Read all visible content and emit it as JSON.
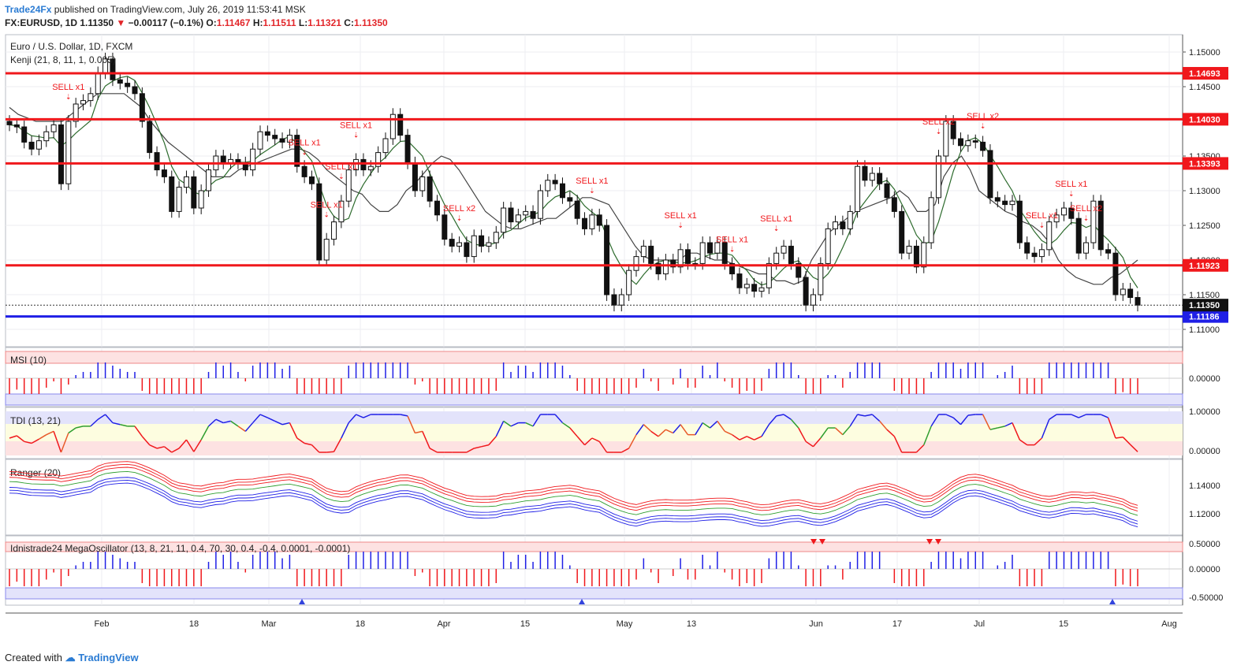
{
  "header": {
    "publisher": "Trade24Fx",
    "published_text": "published on TradingView.com, July 26, 2019 11:53:41 MSK",
    "symbol": "FX:EURUSD, 1D",
    "last": "1.11350",
    "change": "−0.00117 (−0.1%)",
    "o_label": "O:",
    "o_val": "1.11467",
    "h_label": "H:",
    "h_val": "1.11511",
    "l_label": "L:",
    "l_val": "1.11321",
    "c_label": "C:",
    "c_val": "1.11350"
  },
  "footer": {
    "created_with": "Created with",
    "brand": "TradingView"
  },
  "colors": {
    "red": "#f0181c",
    "blue": "#1f1fe6",
    "green": "#2ca02c",
    "bear": "#111111",
    "bull": "#ffffff",
    "grid": "#eceef2"
  },
  "chart_data": [
    {
      "type": "candlestick",
      "title": "Euro / U.S. Dollar, 1D, FXCM",
      "subtitle": "Kenji (21, 8, 11, 1, 0.005)",
      "x_ticks": [
        "Feb",
        "18",
        "Mar",
        "18",
        "Apr",
        "15",
        "May",
        "13",
        "Jun",
        "17",
        "Jul",
        "15",
        "Aug"
      ],
      "y_ticks": [
        "1.15000",
        "1.14500",
        "1.14000",
        "1.13500",
        "1.13000",
        "1.12500",
        "1.12000",
        "1.11500",
        "1.11000"
      ],
      "ylim": [
        1.1075,
        1.1525
      ],
      "horizontal_levels": [
        {
          "value": 1.14693,
          "label": "1.14693",
          "color": "#f0181c"
        },
        {
          "value": 1.1403,
          "label": "1.14030",
          "color": "#f0181c"
        },
        {
          "value": 1.13393,
          "label": "1.13393",
          "color": "#f0181c"
        },
        {
          "value": 1.11923,
          "label": "1.11923",
          "color": "#f0181c"
        },
        {
          "value": 1.11186,
          "label": "1.11186",
          "color": "#1f1fe6"
        }
      ],
      "last_price": {
        "value": 1.1135,
        "label": "1.11350"
      },
      "signals": [
        "SELL x1",
        "SELL x1",
        "SELL x1",
        "SELL x1",
        "SELL x1",
        "SELL x2",
        "SELL x1",
        "SELL x1",
        "SELL x1",
        "SELL x1",
        "SELL x2",
        "SELL x2",
        "SELL x1",
        "SELL x1",
        "SELL x2"
      ],
      "close": [
        1.1395,
        1.1392,
        1.137,
        1.136,
        1.1372,
        1.1385,
        1.1395,
        1.131,
        1.14,
        1.1425,
        1.143,
        1.144,
        1.147,
        1.149,
        1.146,
        1.1455,
        1.145,
        1.144,
        1.14,
        1.1355,
        1.133,
        1.132,
        1.127,
        1.1305,
        1.132,
        1.1275,
        1.13,
        1.133,
        1.135,
        1.134,
        1.1345,
        1.134,
        1.133,
        1.136,
        1.1385,
        1.138,
        1.1375,
        1.137,
        1.138,
        1.1335,
        1.132,
        1.131,
        1.12,
        1.123,
        1.1255,
        1.1285,
        1.133,
        1.1345,
        1.133,
        1.1335,
        1.1355,
        1.1375,
        1.141,
        1.138,
        1.134,
        1.13,
        1.132,
        1.1285,
        1.1265,
        1.123,
        1.122,
        1.1225,
        1.1205,
        1.1235,
        1.122,
        1.1225,
        1.124,
        1.1275,
        1.1255,
        1.1265,
        1.127,
        1.126,
        1.13,
        1.1315,
        1.131,
        1.129,
        1.1285,
        1.126,
        1.1245,
        1.1265,
        1.125,
        1.115,
        1.1135,
        1.115,
        1.1185,
        1.1205,
        1.122,
        1.1195,
        1.118,
        1.12,
        1.119,
        1.1215,
        1.1195,
        1.1195,
        1.1225,
        1.121,
        1.1225,
        1.1195,
        1.118,
        1.116,
        1.1165,
        1.1155,
        1.116,
        1.1195,
        1.121,
        1.122,
        1.1195,
        1.1175,
        1.1135,
        1.115,
        1.1195,
        1.1245,
        1.1255,
        1.1245,
        1.127,
        1.1335,
        1.1315,
        1.1325,
        1.131,
        1.129,
        1.127,
        1.121,
        1.122,
        1.119,
        1.1225,
        1.129,
        1.135,
        1.14,
        1.1375,
        1.1365,
        1.1372,
        1.137,
        1.1358,
        1.129,
        1.1285,
        1.128,
        1.1285,
        1.1225,
        1.121,
        1.1205,
        1.1215,
        1.1255,
        1.1265,
        1.1275,
        1.126,
        1.121,
        1.1225,
        1.1285,
        1.1215,
        1.121,
        1.115,
        1.1158,
        1.1146,
        1.1135
      ],
      "ma_close": [
        1.142,
        1.141,
        1.1405,
        1.14,
        1.14,
        1.14,
        1.14,
        1.141,
        1.142,
        1.143,
        1.144,
        1.144,
        1.144,
        1.144,
        1.143,
        1.142,
        1.14,
        1.1385,
        1.137,
        1.136,
        1.135,
        1.134,
        1.133,
        1.132,
        1.132,
        1.132,
        1.133,
        1.1335,
        1.134,
        1.1345,
        1.135,
        1.1355,
        1.136,
        1.136,
        1.1355,
        1.1345,
        1.133,
        1.132,
        1.131,
        1.13,
        1.1295,
        1.128,
        1.127,
        1.127,
        1.128,
        1.13,
        1.131,
        1.1325,
        1.134,
        1.135,
        1.1345,
        1.133,
        1.131,
        1.129,
        1.127,
        1.126,
        1.125,
        1.1245,
        1.1245,
        1.125,
        1.1255,
        1.126,
        1.126,
        1.127,
        1.128,
        1.129,
        1.129,
        1.1285,
        1.128,
        1.126,
        1.124,
        1.122,
        1.1205,
        1.12,
        1.12,
        1.12,
        1.12,
        1.121,
        1.121,
        1.1205,
        1.12,
        1.12,
        1.1195,
        1.119,
        1.1185,
        1.118,
        1.118,
        1.117,
        1.117,
        1.1165,
        1.117,
        1.12,
        1.122,
        1.124,
        1.125,
        1.126,
        1.127,
        1.1275,
        1.128,
        1.1285,
        1.129,
        1.13,
        1.129,
        1.127,
        1.127,
        1.128,
        1.132,
        1.134,
        1.135,
        1.133,
        1.13,
        1.129,
        1.128,
        1.127,
        1.1265,
        1.1255,
        1.125,
        1.124,
        1.1225,
        1.12,
        1.1185,
        1.1175,
        1.117,
        1.1165,
        1.1165,
        1.1175,
        1.118,
        1.119,
        1.12
      ],
      "msi_range": [
        "0.00000"
      ],
      "tdi_range": [
        "1.00000",
        "0.00000"
      ],
      "ranger_ticks": [
        "1.14000",
        "1.12000"
      ],
      "mega_ticks": [
        "0.50000",
        "0.00000",
        "-0.50000"
      ]
    },
    {
      "type": "bar",
      "title": "MSI (10)"
    },
    {
      "type": "line",
      "title": "TDI (13, 21)"
    },
    {
      "type": "line",
      "title": "Ranger (20)"
    },
    {
      "type": "bar",
      "title": "Idnistrade24 MegaOscillator (13, 8, 21, 11, 0.4, 70, 30, 0.4, -0.4, 0.0001, -0.0001)"
    }
  ]
}
